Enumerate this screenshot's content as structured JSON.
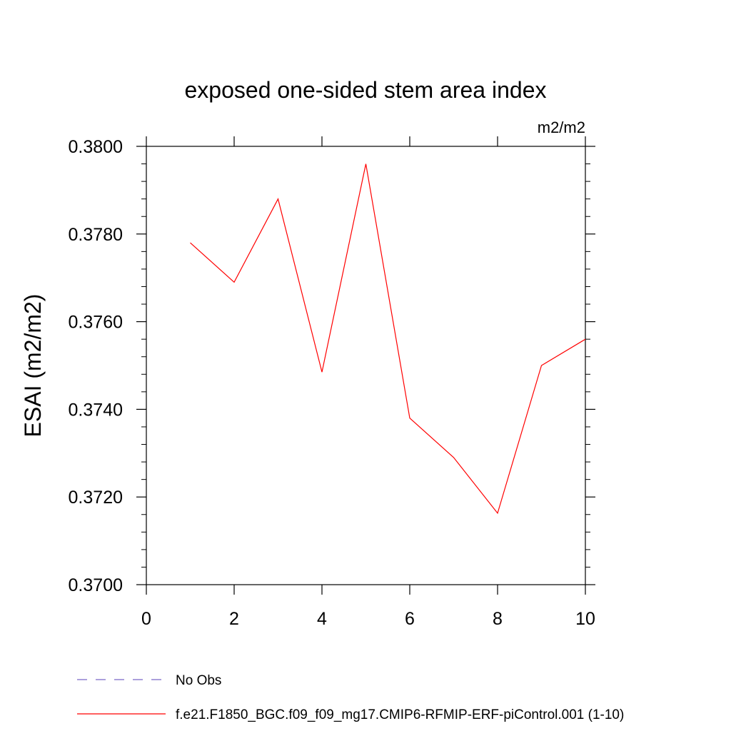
{
  "chart_data": {
    "type": "line",
    "title": "exposed one-sided stem area index",
    "units": "m2/m2",
    "ylabel": "ESAI  (m2/m2)",
    "xlabel": "",
    "xlim": [
      0,
      10
    ],
    "ylim": [
      0.37,
      0.38
    ],
    "x_ticks": [
      0,
      2,
      4,
      6,
      8,
      10
    ],
    "x_tick_labels": [
      "0",
      "2",
      "4",
      "6",
      "8",
      "10"
    ],
    "y_ticks": [
      0.37,
      0.372,
      0.374,
      0.376,
      0.378,
      0.38
    ],
    "y_tick_labels": [
      "0.3700",
      "0.3720",
      "0.3740",
      "0.3760",
      "0.3780",
      "0.3800"
    ],
    "grid": false,
    "legend_position": "bottom",
    "series": [
      {
        "name": "f.e21.F1850_BGC.f09_f09_mg17.CMIP6-RFMIP-ERF-piControl.001 (1-10)",
        "color": "#ff0000",
        "style": "solid",
        "x": [
          1,
          2,
          3,
          4,
          5,
          6,
          7,
          8,
          9,
          10
        ],
        "y": [
          0.3778,
          0.3769,
          0.3788,
          0.37485,
          0.3796,
          0.3738,
          0.3729,
          0.37163,
          0.375,
          0.3756
        ]
      }
    ],
    "legend": [
      {
        "label": "No Obs",
        "color": "#7b68c8",
        "style": "dashed"
      },
      {
        "label": "f.e21.F1850_BGC.f09_f09_mg17.CMIP6-RFMIP-ERF-piControl.001 (1-10)",
        "color": "#ff0000",
        "style": "solid"
      }
    ]
  }
}
